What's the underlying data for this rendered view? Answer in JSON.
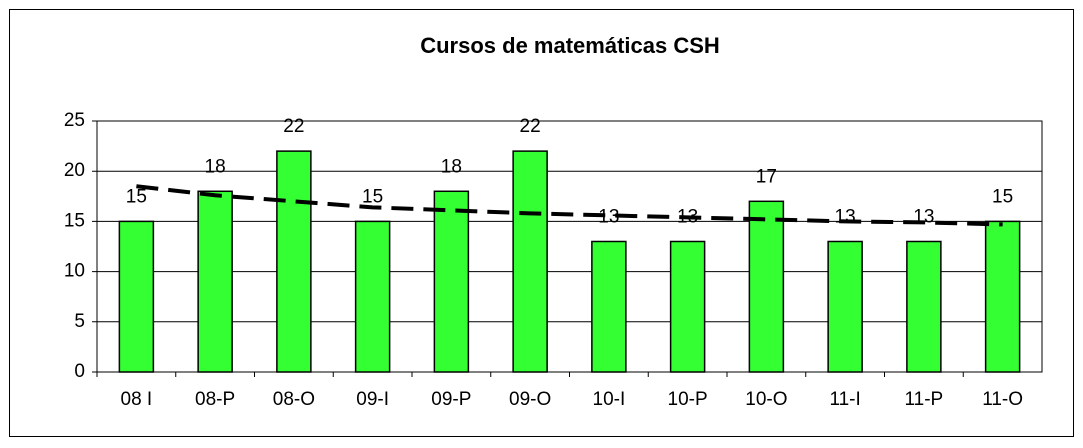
{
  "chart_data": {
    "type": "bar",
    "title": "Cursos de matemáticas CSH",
    "categories": [
      "08 I",
      "08-P",
      "08-O",
      "09-I",
      "09-P",
      "09-O",
      "10-I",
      "10-P",
      "10-O",
      "11-I",
      "11-P",
      "11-O"
    ],
    "values": [
      15,
      18,
      22,
      15,
      18,
      22,
      13,
      13,
      17,
      13,
      13,
      15
    ],
    "color": "#33ff33",
    "trendline": {
      "color": "#000000",
      "values": [
        18.5,
        17.6,
        17.0,
        16.4,
        16.1,
        15.8,
        15.6,
        15.4,
        15.2,
        15.0,
        14.9,
        14.7
      ]
    },
    "ylim": [
      0,
      25
    ],
    "yticks": [
      0,
      5,
      10,
      15,
      20,
      25
    ],
    "grid": true
  }
}
